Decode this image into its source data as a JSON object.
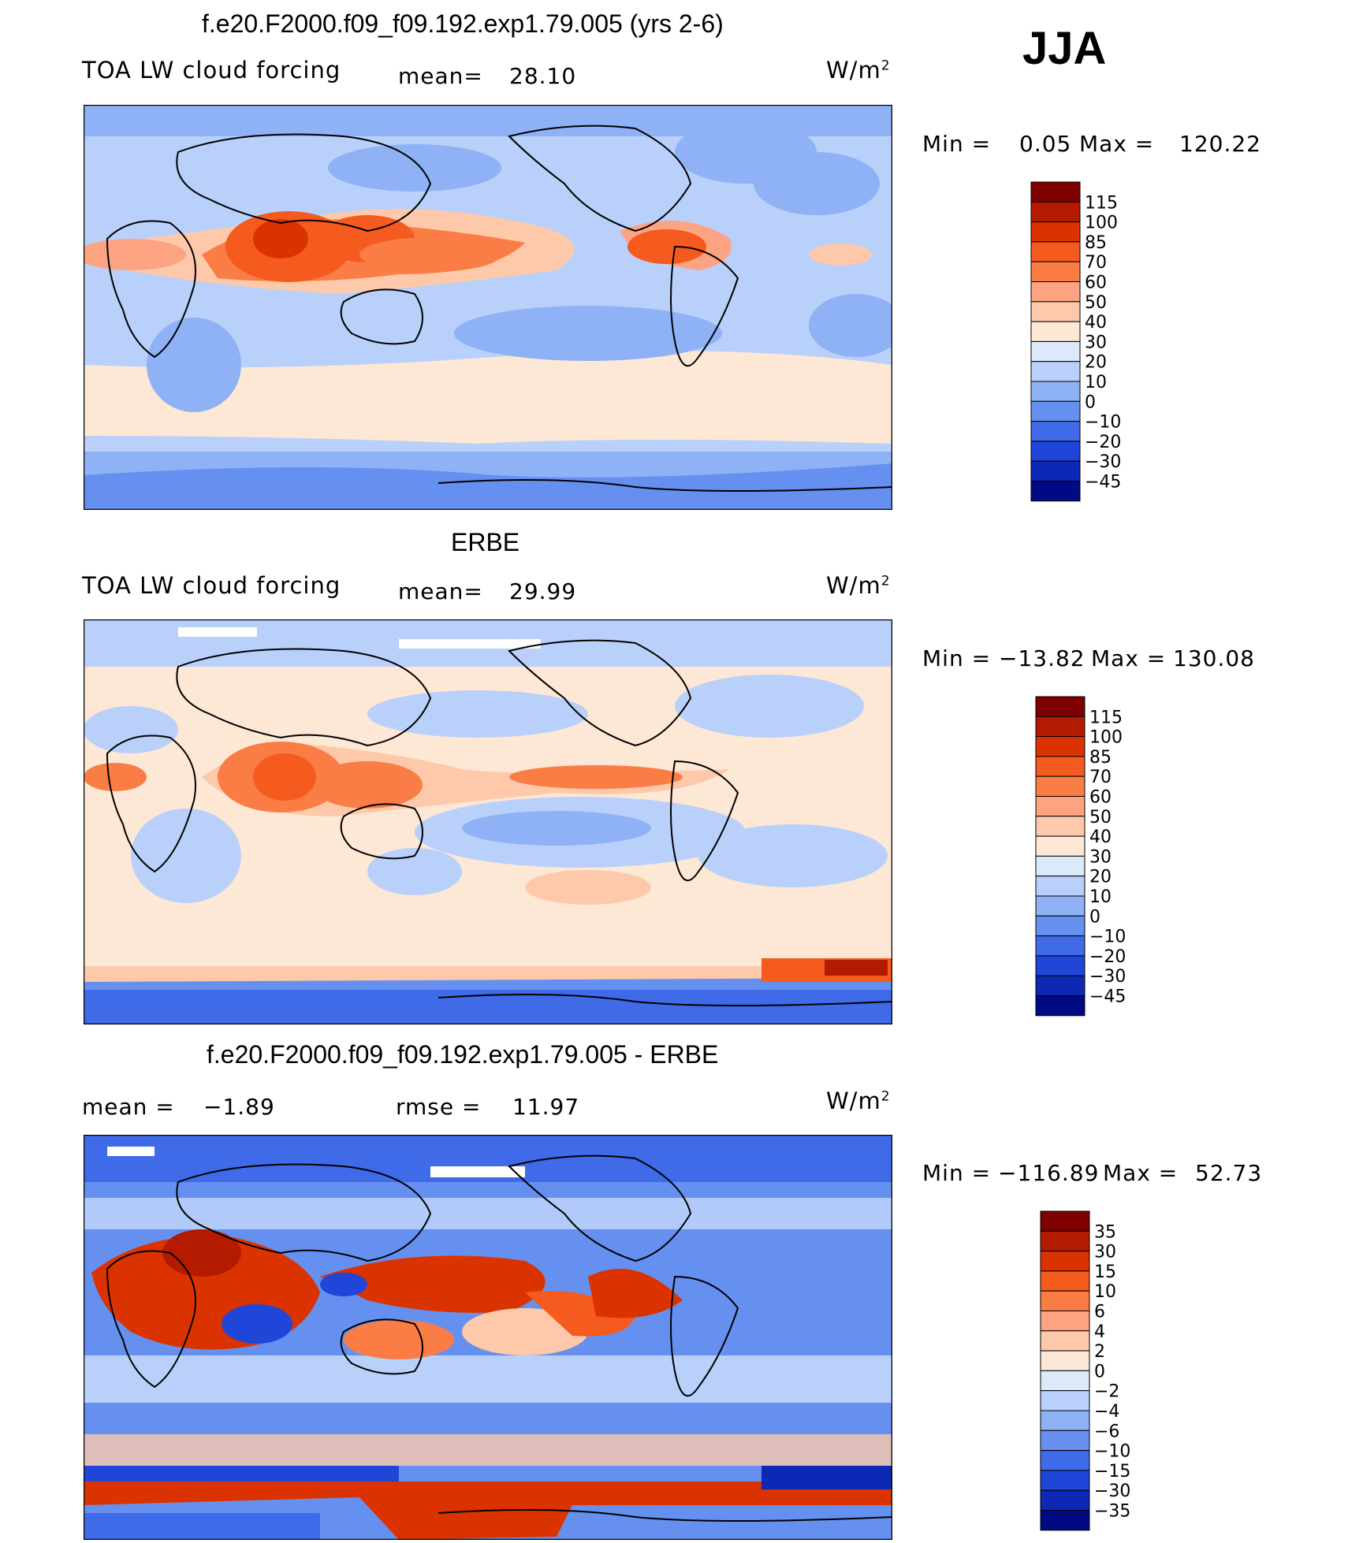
{
  "season": "JJA",
  "units": {
    "base": "W/m",
    "exp": "2"
  },
  "panels": [
    {
      "title": "f.e20.F2000.f09_f09.192.exp1.79.005 (yrs 2-6)",
      "variable": "TOA LW cloud forcing",
      "stat_label": "mean=",
      "stat_value": "28.10",
      "min_label": "Min  =",
      "min_value": "0.05",
      "max_label": "Max  =",
      "max_value": "120.22",
      "colorbar_ticks": [
        "115",
        "100",
        "85",
        "70",
        "60",
        "50",
        "40",
        "30",
        "20",
        "10",
        "0",
        "−10",
        "−20",
        "−30",
        "−45"
      ]
    },
    {
      "title": "ERBE",
      "variable": "TOA LW cloud forcing",
      "stat_label": "mean=",
      "stat_value": "29.99",
      "min_label": "Min  =",
      "min_value": "−13.82",
      "max_label": "Max  =",
      "max_value": "130.08",
      "colorbar_ticks": [
        "115",
        "100",
        "85",
        "70",
        "60",
        "50",
        "40",
        "30",
        "20",
        "10",
        "0",
        "−10",
        "−20",
        "−30",
        "−45"
      ]
    },
    {
      "title": "f.e20.F2000.f09_f09.192.exp1.79.005 - ERBE",
      "stat_label": "mean  =",
      "stat_value": "−1.89",
      "rmse_label": "rmse  =",
      "rmse_value": "11.97",
      "min_label": "Min  =",
      "min_value": "−116.89",
      "max_label": "Max  =",
      "max_value": "52.73",
      "colorbar_ticks": [
        "35",
        "30",
        "15",
        "10",
        "6",
        "4",
        "2",
        "0",
        "−2",
        "−4",
        "−6",
        "−10",
        "−15",
        "−30",
        "−35"
      ]
    }
  ],
  "colors": {
    "scale16": [
      "#7f0000",
      "#b31a00",
      "#db3300",
      "#f55a1e",
      "#fa7d46",
      "#fca482",
      "#fdc9aa",
      "#fde8d6",
      "#dbe9fb",
      "#b9d0fa",
      "#8fb1f5",
      "#6690ef",
      "#3f6ae8",
      "#1f46d8",
      "#0d28b4",
      "#000a82"
    ],
    "land_outline": "#000000"
  }
}
